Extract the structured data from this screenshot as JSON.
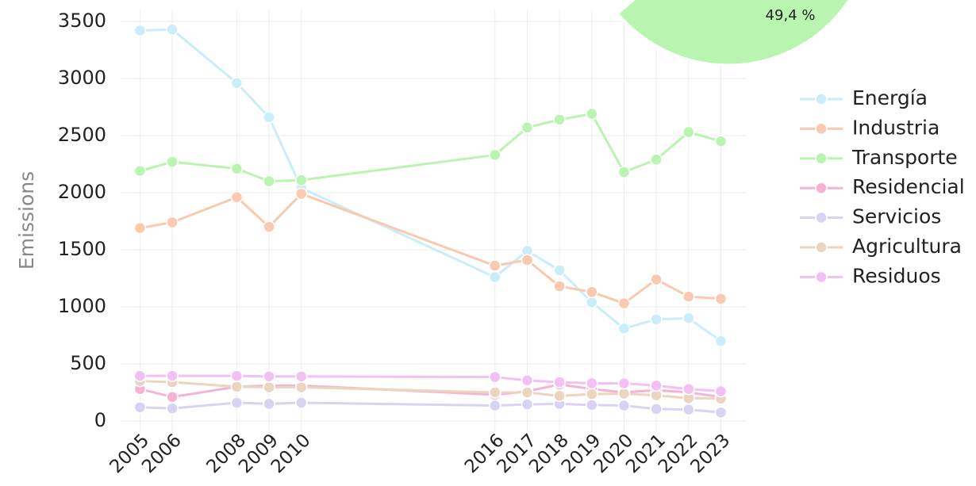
{
  "chart_data": [
    {
      "type": "line",
      "y_label": "Emissions",
      "x": [
        2005,
        2006,
        2008,
        2009,
        2010,
        2016,
        2017,
        2018,
        2019,
        2020,
        2021,
        2022,
        2023
      ],
      "xlim": [
        2004.4,
        2023.8
      ],
      "xticks": [
        2005,
        2006,
        2008,
        2009,
        2010,
        2016,
        2017,
        2018,
        2019,
        2020,
        2021,
        2022,
        2023
      ],
      "ylim": [
        -100,
        3600
      ],
      "yticks": [
        0,
        500,
        1000,
        1500,
        2000,
        2500,
        3000,
        3500
      ],
      "grid": true,
      "legend": "right",
      "series": [
        {
          "name": "Energía",
          "color": "#c9eef9",
          "values": [
            3420,
            3430,
            2960,
            2660,
            2040,
            1260,
            1490,
            1320,
            1040,
            810,
            890,
            900,
            700
          ]
        },
        {
          "name": "Industria",
          "color": "#f9c9b0",
          "values": [
            1690,
            1740,
            1960,
            1700,
            1990,
            1360,
            1410,
            1180,
            1130,
            1030,
            1240,
            1090,
            1070
          ]
        },
        {
          "name": "Transporte",
          "color": "#b9f5b0",
          "values": [
            2190,
            2270,
            2210,
            2100,
            2110,
            2330,
            2570,
            2640,
            2690,
            2180,
            2290,
            2530,
            2450
          ]
        },
        {
          "name": "Residencial",
          "color": "#f5b3d3",
          "values": [
            280,
            210,
            300,
            310,
            310,
            230,
            260,
            320,
            280,
            250,
            270,
            250,
            210
          ]
        },
        {
          "name": "Servicios",
          "color": "#d7d3f3",
          "values": [
            120,
            110,
            160,
            150,
            160,
            135,
            145,
            150,
            140,
            135,
            105,
            100,
            75
          ]
        },
        {
          "name": "Agricultura",
          "color": "#ecd5c0",
          "values": [
            350,
            340,
            300,
            295,
            295,
            250,
            250,
            220,
            235,
            240,
            225,
            200,
            195
          ]
        },
        {
          "name": "Residuos",
          "color": "#f3c0f3",
          "values": [
            395,
            395,
            395,
            390,
            390,
            385,
            355,
            340,
            330,
            330,
            310,
            280,
            260
          ]
        }
      ]
    },
    {
      "type": "pie",
      "values": [
        49.4
      ],
      "value_labels": [
        "49,4 %"
      ],
      "colors": [
        "#b9f5b0"
      ]
    }
  ]
}
